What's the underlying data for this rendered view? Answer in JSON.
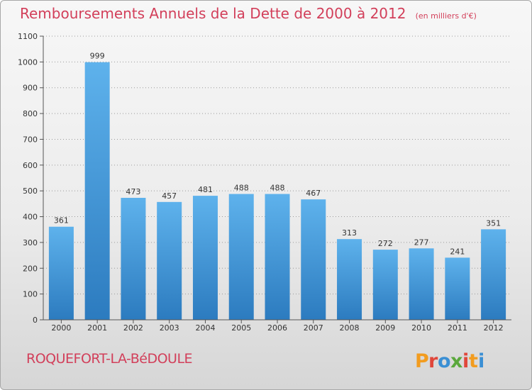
{
  "title": "Remboursements Annuels de la Dette de 2000 à 2012",
  "unit": "(en milliers d'€)",
  "commune": "ROQUEFORT-LA-BéDOULE",
  "logo_text": "Proxiti",
  "colors": {
    "bar_top": "#5eb2ec",
    "bar_bottom": "#2c7bbf",
    "title": "#d23f5a",
    "grid": "#9a9a9a"
  },
  "chart_data": {
    "type": "bar",
    "categories": [
      "2000",
      "2001",
      "2002",
      "2003",
      "2004",
      "2005",
      "2006",
      "2007",
      "2008",
      "2009",
      "2010",
      "2011",
      "2012"
    ],
    "values": [
      361,
      999,
      473,
      457,
      481,
      488,
      488,
      467,
      313,
      272,
      277,
      241,
      351
    ],
    "title": "Remboursements Annuels de la Dette de 2000 à 2012",
    "subtitle": "(en milliers d'€)",
    "xlabel": "",
    "ylabel": "",
    "ylim": [
      0,
      1100
    ],
    "yticks": [
      0,
      100,
      200,
      300,
      400,
      500,
      600,
      700,
      800,
      900,
      1000,
      1100
    ],
    "grid": true,
    "grid_style": "dotted",
    "legend": "none",
    "data_labels": true
  }
}
